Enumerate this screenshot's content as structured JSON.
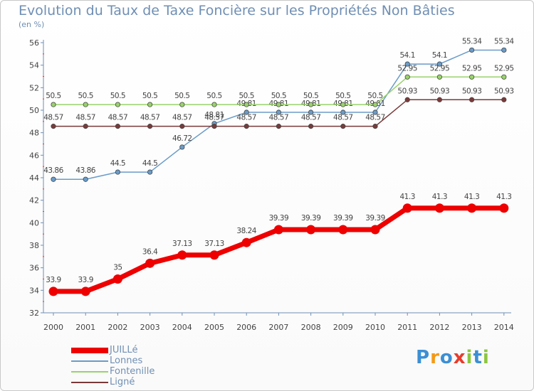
{
  "chart_data": {
    "type": "line",
    "title": "Evolution du Taux de Taxe Foncière sur les Propriétés Non Bâties",
    "ylabel": "(en %)",
    "xlabel": "",
    "ylim": [
      32,
      56
    ],
    "yticks": [
      32,
      34,
      36,
      38,
      40,
      42,
      44,
      46,
      48,
      50,
      52,
      54,
      56
    ],
    "categories": [
      "2000",
      "2001",
      "2002",
      "2003",
      "2004",
      "2005",
      "2006",
      "2007",
      "2008",
      "2009",
      "2010",
      "2011",
      "2012",
      "2013",
      "2014"
    ],
    "series": [
      {
        "name": "Lonnes",
        "color": "#6a9cc9",
        "width": 1.5,
        "values": [
          43.86,
          43.86,
          44.5,
          44.5,
          46.72,
          48.81,
          49.81,
          49.81,
          49.81,
          49.81,
          49.81,
          54.1,
          54.1,
          55.34,
          55.34
        ]
      },
      {
        "name": "Fontenille",
        "color": "#99d36b",
        "width": 1.5,
        "values": [
          50.5,
          50.5,
          50.5,
          50.5,
          50.5,
          50.5,
          50.5,
          50.5,
          50.5,
          50.5,
          50.5,
          52.95,
          52.95,
          52.95,
          52.95
        ]
      },
      {
        "name": "Ligné",
        "color": "#7a3a3a",
        "width": 1.5,
        "values": [
          48.57,
          48.57,
          48.57,
          48.57,
          48.57,
          48.57,
          48.57,
          48.57,
          48.57,
          48.57,
          48.57,
          50.93,
          50.93,
          50.93,
          50.93
        ]
      },
      {
        "name": "JUILLé",
        "color": "#ee0000",
        "width": 7,
        "values": [
          33.9,
          33.9,
          35,
          36.4,
          37.13,
          37.13,
          38.24,
          39.39,
          39.39,
          39.39,
          39.39,
          41.3,
          41.3,
          41.3,
          41.3
        ]
      }
    ],
    "legend": [
      "JUILLé",
      "Lonnes",
      "Fontenille",
      "Ligné"
    ],
    "legend_position": "bottom-left",
    "grid": false
  },
  "logo": {
    "text": "Proxiti",
    "letters": [
      "P",
      "r",
      "o",
      "x",
      "i",
      "t",
      "i"
    ],
    "colors": [
      "#3b8fd4",
      "#f39a1a",
      "#3b8fd4",
      "#e83c2c",
      "#8cc63f",
      "#3b8fd4",
      "#8cc63f"
    ]
  },
  "colors": {
    "axis": "#6f8fb4",
    "label": "#444444"
  }
}
